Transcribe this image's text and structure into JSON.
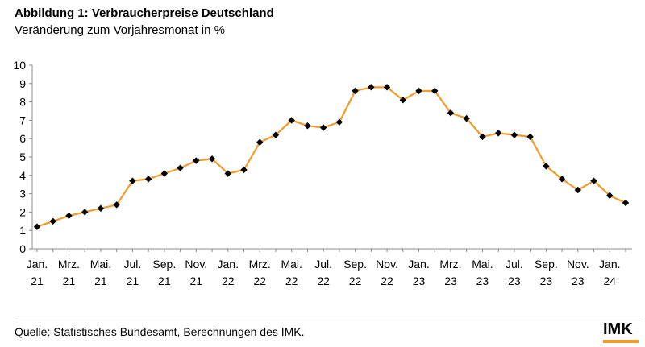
{
  "header": {
    "title": "Abbildung 1: Verbraucherpreise Deutschland",
    "subtitle": "Veränderung zum Vorjahresmonat in %"
  },
  "footer": {
    "source": "Quelle: Statistisches Bundesamt, Berechnungen des IMK.",
    "logo_text": "IMK"
  },
  "colors": {
    "line": "#f39a2b",
    "marker": "#000000",
    "axis": "#8c8c8c",
    "logo_bar": "#f39a2b"
  },
  "chart_data": {
    "type": "line",
    "title": "Abbildung 1: Verbraucherpreise Deutschland",
    "subtitle": "Veränderung zum Vorjahresmonat in %",
    "xlabel": "",
    "ylabel": "",
    "ylim": [
      0,
      10
    ],
    "yticks": [
      0,
      1,
      2,
      3,
      4,
      5,
      6,
      7,
      8,
      9,
      10
    ],
    "grid": false,
    "x": [
      "2021-01",
      "2021-02",
      "2021-03",
      "2021-04",
      "2021-05",
      "2021-06",
      "2021-07",
      "2021-08",
      "2021-09",
      "2021-10",
      "2021-11",
      "2021-12",
      "2022-01",
      "2022-02",
      "2022-03",
      "2022-04",
      "2022-05",
      "2022-06",
      "2022-07",
      "2022-08",
      "2022-09",
      "2022-10",
      "2022-11",
      "2022-12",
      "2023-01",
      "2023-02",
      "2023-03",
      "2023-04",
      "2023-05",
      "2023-06",
      "2023-07",
      "2023-08",
      "2023-09",
      "2023-10",
      "2023-11",
      "2023-12",
      "2024-01",
      "2024-02"
    ],
    "values": [
      1.2,
      1.5,
      1.8,
      2.0,
      2.2,
      2.4,
      3.7,
      3.8,
      4.1,
      4.4,
      4.8,
      4.9,
      4.1,
      4.3,
      5.8,
      6.2,
      7.0,
      6.7,
      6.6,
      6.9,
      8.6,
      8.8,
      8.8,
      8.1,
      8.6,
      8.6,
      7.4,
      7.1,
      6.1,
      6.3,
      6.2,
      6.1,
      4.5,
      3.8,
      3.2,
      3.7,
      2.9,
      2.5
    ],
    "xtick_labels": [
      {
        "month": "Jan.",
        "year": "21"
      },
      {
        "month": "Mrz.",
        "year": "21"
      },
      {
        "month": "Mai.",
        "year": "21"
      },
      {
        "month": "Jul.",
        "year": "21"
      },
      {
        "month": "Sep.",
        "year": "21"
      },
      {
        "month": "Nov.",
        "year": "21"
      },
      {
        "month": "Jan.",
        "year": "22"
      },
      {
        "month": "Mrz.",
        "year": "22"
      },
      {
        "month": "Mai.",
        "year": "22"
      },
      {
        "month": "Jul.",
        "year": "22"
      },
      {
        "month": "Sep.",
        "year": "22"
      },
      {
        "month": "Nov.",
        "year": "22"
      },
      {
        "month": "Jan.",
        "year": "23"
      },
      {
        "month": "Mrz.",
        "year": "23"
      },
      {
        "month": "Mai.",
        "year": "23"
      },
      {
        "month": "Jul.",
        "year": "23"
      },
      {
        "month": "Sep.",
        "year": "23"
      },
      {
        "month": "Nov.",
        "year": "23"
      },
      {
        "month": "Jan.",
        "year": "24"
      }
    ]
  }
}
